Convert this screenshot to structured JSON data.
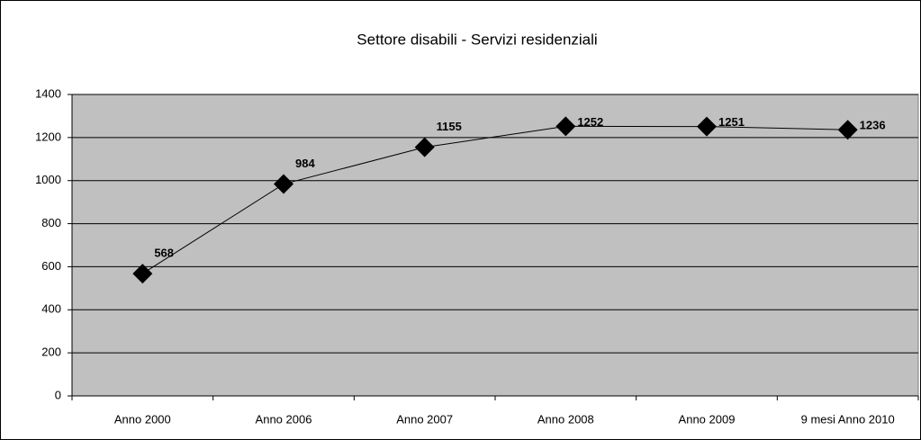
{
  "chart_data": {
    "type": "line",
    "title": "Settore disabili - Servizi residenziali",
    "categories": [
      "Anno 2000",
      "Anno 2006",
      "Anno 2007",
      "Anno 2008",
      "Anno 2009",
      "9 mesi Anno 2010"
    ],
    "values": [
      568,
      984,
      1155,
      1252,
      1251,
      1236
    ],
    "color": "#000000",
    "ylim": [
      0,
      1400
    ],
    "yticks": [
      0,
      200,
      400,
      600,
      800,
      1000,
      1200,
      1400
    ],
    "grid": true
  }
}
